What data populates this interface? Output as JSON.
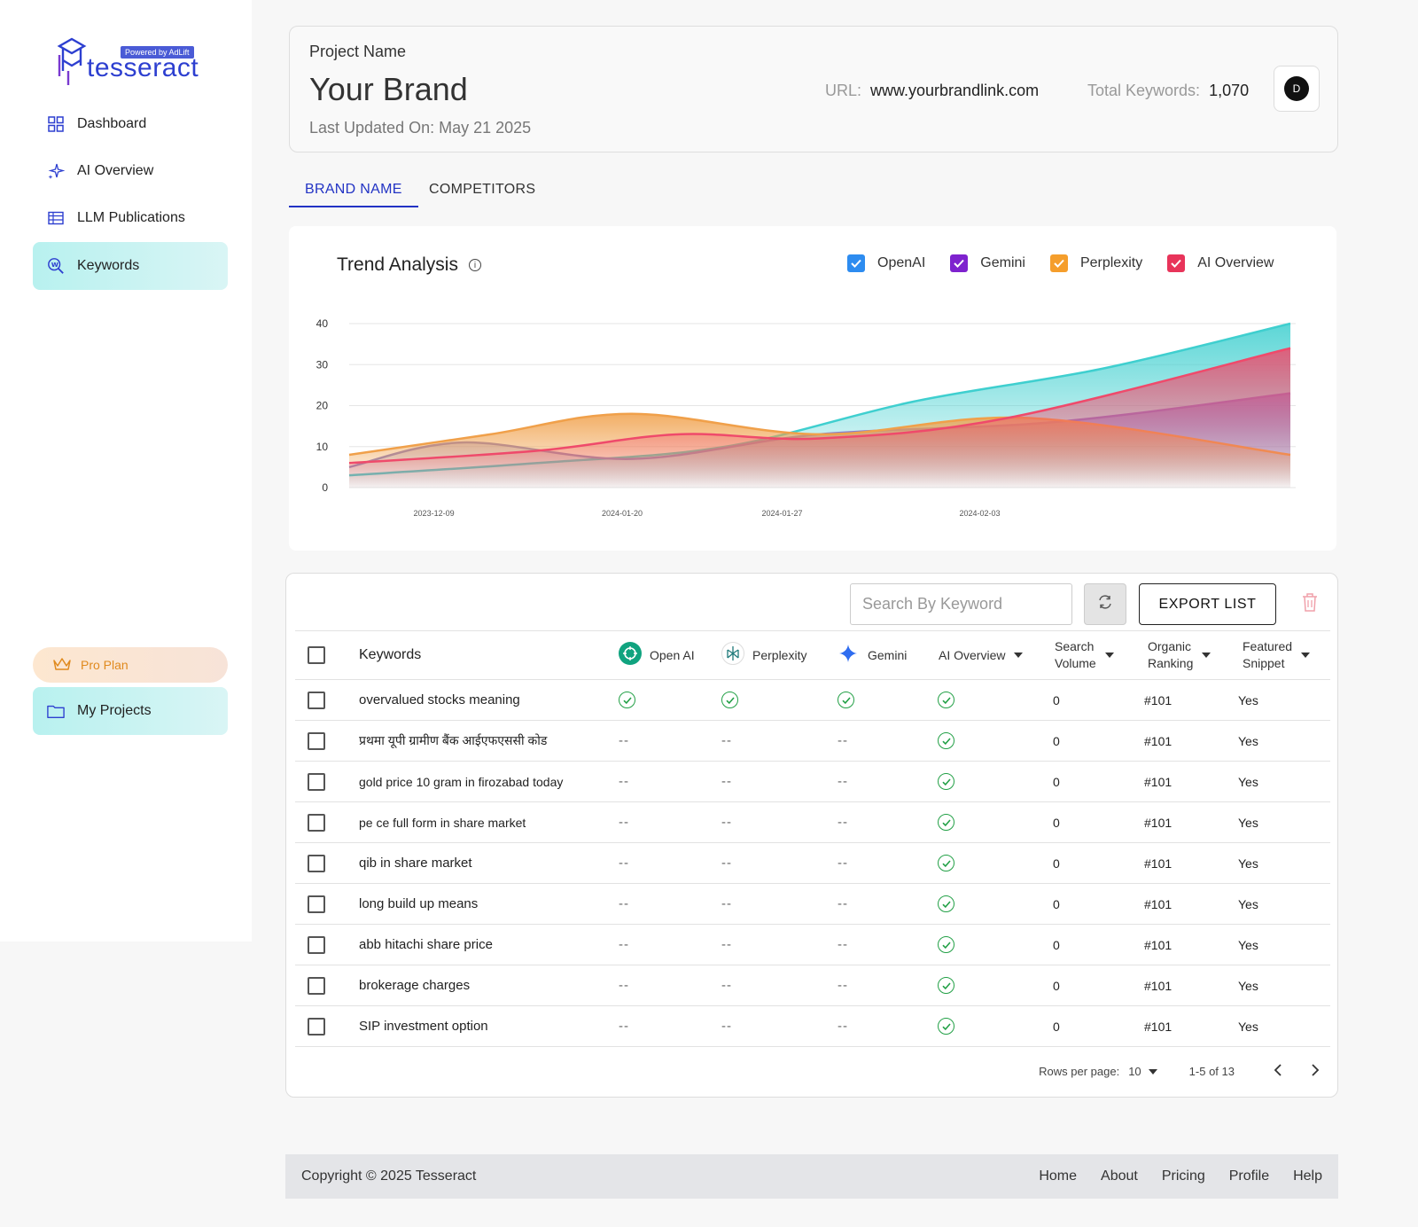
{
  "brand": {
    "logo_name": "tesseract",
    "logo_badge": "Powered by AdLift"
  },
  "sidebar": {
    "items": [
      {
        "label": "Dashboard",
        "icon": "grid-icon"
      },
      {
        "label": "AI Overview",
        "icon": "sparkle-icon"
      },
      {
        "label": "LLM Publications",
        "icon": "table-icon"
      },
      {
        "label": "Keywords",
        "icon": "keyword-search-icon",
        "active": true
      }
    ],
    "pro_plan": "Pro Plan",
    "my_projects": "My Projects"
  },
  "header": {
    "label": "Project Name",
    "brand": "Your Brand",
    "last_updated": "Last Updated On: May 21 2025",
    "url_label": "URL:",
    "url_value": "www.yourbrandlink.com",
    "total_keywords_label": "Total Keywords:",
    "total_keywords_value": "1,070",
    "avatar_initial": "D"
  },
  "tabs": [
    {
      "label": "BRAND NAME",
      "active": true
    },
    {
      "label": "COMPETITORS",
      "active": false
    }
  ],
  "chart_card": {
    "title": "Trend Analysis",
    "legend": [
      {
        "label": "OpenAI",
        "color": "#2d8cf0"
      },
      {
        "label": "Gemini",
        "color": "#7e22ce"
      },
      {
        "label": "Perplexity",
        "color": "#f59e2c"
      },
      {
        "label": "AI Overview",
        "color": "#e8345a"
      }
    ]
  },
  "chart_data": {
    "type": "area",
    "x_ticks": [
      "2023-12-09",
      "2024-01-20",
      "2024-01-27",
      "2024-02-03"
    ],
    "ylim": [
      0,
      40
    ],
    "y_ticks": [
      0,
      10,
      20,
      30,
      40
    ],
    "grid": true,
    "series": [
      {
        "name": "OpenAI",
        "color": "#3fcfcf",
        "x": [
          0,
          0.2,
          0.4,
          0.6,
          0.8,
          1.0
        ],
        "values": [
          3,
          6,
          10,
          21,
          29,
          40
        ]
      },
      {
        "name": "Gemini",
        "color": "#8a7ec8",
        "x": [
          0,
          0.12,
          0.3,
          0.5,
          0.75,
          1.0
        ],
        "values": [
          5,
          11,
          7,
          13,
          16,
          23
        ]
      },
      {
        "name": "Perplexity",
        "color": "#f0a04a",
        "x": [
          0,
          0.15,
          0.3,
          0.5,
          0.72,
          1.0
        ],
        "values": [
          8,
          13,
          18,
          13,
          17,
          8
        ]
      },
      {
        "name": "AI Overview",
        "color": "#ef4a6b",
        "x": [
          0,
          0.2,
          0.35,
          0.5,
          0.7,
          1.0
        ],
        "values": [
          6,
          9,
          13,
          12,
          17,
          34
        ]
      }
    ]
  },
  "table": {
    "search_placeholder": "Search By Keyword",
    "export_label": "EXPORT LIST",
    "columns": {
      "keywords": "Keywords",
      "openai": "Open AI",
      "perplexity": "Perplexity",
      "gemini": "Gemini",
      "ai_overview": "AI Overview",
      "search_volume_1": "Search",
      "search_volume_2": "Volume",
      "organic_1": "Organic",
      "organic_2": "Ranking",
      "featured_1": "Featured",
      "featured_2": "Snippet"
    },
    "rows": [
      {
        "keyword": "overvalued stocks meaning",
        "openai": "check",
        "perplexity": "check",
        "gemini": "check",
        "ai_overview": "check",
        "volume": "0",
        "ranking": "#101",
        "snippet": "Yes"
      },
      {
        "keyword": "प्रथमा यूपी ग्रामीण बैंक आईएफएससी कोड",
        "openai": "--",
        "perplexity": "--",
        "gemini": "--",
        "ai_overview": "check",
        "volume": "0",
        "ranking": "#101",
        "snippet": "Yes"
      },
      {
        "keyword": "gold price 10 gram in firozabad today",
        "openai": "--",
        "perplexity": "--",
        "gemini": "--",
        "ai_overview": "check",
        "volume": "0",
        "ranking": "#101",
        "snippet": "Yes"
      },
      {
        "keyword": "pe ce full form in share market",
        "openai": "--",
        "perplexity": "--",
        "gemini": "--",
        "ai_overview": "check",
        "volume": "0",
        "ranking": "#101",
        "snippet": "Yes"
      },
      {
        "keyword": "qib in share market",
        "openai": "--",
        "perplexity": "--",
        "gemini": "--",
        "ai_overview": "check",
        "volume": "0",
        "ranking": "#101",
        "snippet": "Yes"
      },
      {
        "keyword": "long build up means",
        "openai": "--",
        "perplexity": "--",
        "gemini": "--",
        "ai_overview": "check",
        "volume": "0",
        "ranking": "#101",
        "snippet": "Yes"
      },
      {
        "keyword": "abb hitachi share price",
        "openai": "--",
        "perplexity": "--",
        "gemini": "--",
        "ai_overview": "check",
        "volume": "0",
        "ranking": "#101",
        "snippet": "Yes"
      },
      {
        "keyword": "brokerage charges",
        "openai": "--",
        "perplexity": "--",
        "gemini": "--",
        "ai_overview": "check",
        "volume": "0",
        "ranking": "#101",
        "snippet": "Yes"
      },
      {
        "keyword": "SIP investment option",
        "openai": "--",
        "perplexity": "--",
        "gemini": "--",
        "ai_overview": "check",
        "volume": "0",
        "ranking": "#101",
        "snippet": "Yes"
      }
    ],
    "pagination": {
      "rows_per_page_label": "Rows per page:",
      "rows_per_page_value": "10",
      "range": "1-5 of 13"
    }
  },
  "footer": {
    "copyright": "Copyright © 2025 Tesseract",
    "links": [
      "Home",
      "About",
      "Pricing",
      "Profile",
      "Help"
    ]
  }
}
